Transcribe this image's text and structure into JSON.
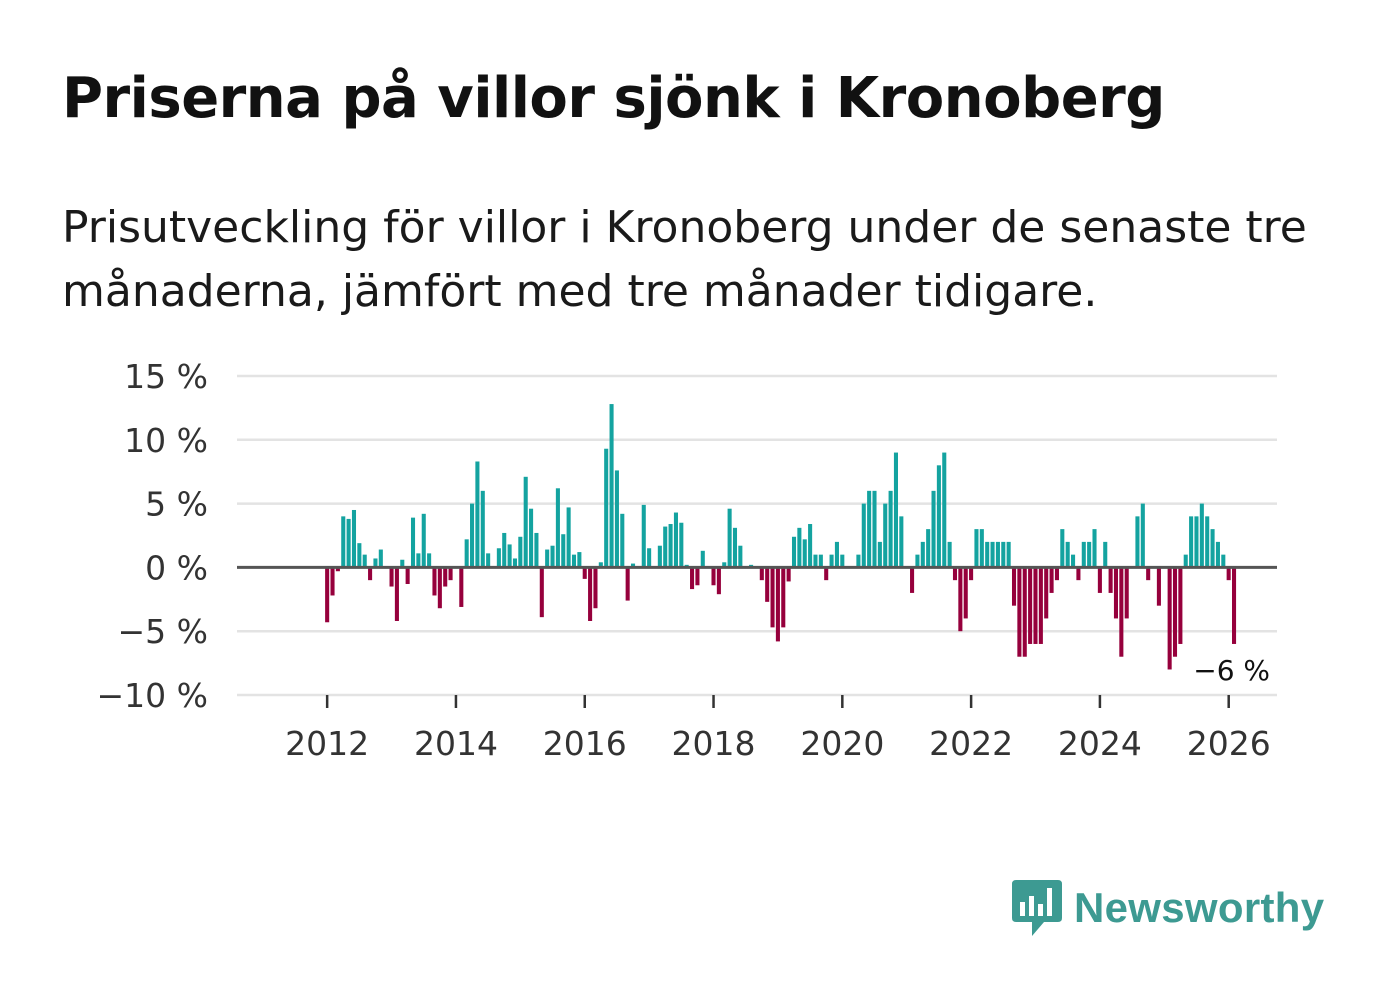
{
  "title": "Priserna på villor sjönk i Kronoberg",
  "subtitle": "Prisutveckling för villor i Kronoberg under de senaste tre månaderna, jämfört med tre månader tidigare.",
  "brand": "Newsworthy",
  "colors": {
    "positive": "#14a3a0",
    "negative": "#96003c",
    "grid": "#e3e3e3",
    "zero": "#555555",
    "brand": "#3d9a92"
  },
  "chart_data": {
    "type": "bar",
    "title": "Priserna på villor sjönk i Kronoberg",
    "xlabel": "",
    "ylabel": "",
    "ylim": [
      -10,
      15
    ],
    "xlim": [
      2010.6,
      2026.75
    ],
    "y_ticks": [
      {
        "value": 15,
        "label": "15 %"
      },
      {
        "value": 10,
        "label": "10 %"
      },
      {
        "value": 5,
        "label": "5 %"
      },
      {
        "value": 0,
        "label": "0 %"
      },
      {
        "value": -5,
        "label": "−5 %"
      },
      {
        "value": -10,
        "label": "−10 %"
      }
    ],
    "x_ticks": [
      {
        "value": 2012,
        "label": "2012"
      },
      {
        "value": 2014,
        "label": "2014"
      },
      {
        "value": 2016,
        "label": "2016"
      },
      {
        "value": 2018,
        "label": "2018"
      },
      {
        "value": 2020,
        "label": "2020"
      },
      {
        "value": 2022,
        "label": "2022"
      },
      {
        "value": 2024,
        "label": "2024"
      },
      {
        "value": 2026,
        "label": "2026"
      }
    ],
    "start": 2012.0,
    "step": 0.08333,
    "values": [
      -4.3,
      -2.2,
      -0.3,
      4.0,
      3.8,
      4.5,
      1.9,
      1.0,
      -1.0,
      0.7,
      1.4,
      0,
      -1.5,
      -4.2,
      0.6,
      -1.3,
      3.9,
      1.1,
      4.2,
      1.1,
      -2.2,
      -3.2,
      -1.5,
      -1.0,
      0,
      -3.1,
      2.2,
      5.0,
      8.3,
      6.0,
      1.1,
      0,
      1.5,
      2.7,
      1.8,
      0.7,
      2.4,
      7.1,
      4.6,
      2.7,
      -3.9,
      1.4,
      1.7,
      6.2,
      2.6,
      4.7,
      1.0,
      1.2,
      -0.9,
      -4.2,
      -3.2,
      0.4,
      9.3,
      12.8,
      7.6,
      4.2,
      -2.6,
      0.3,
      0,
      4.9,
      1.5,
      0,
      1.7,
      3.2,
      3.4,
      4.3,
      3.5,
      0.2,
      -1.7,
      -1.4,
      1.3,
      0,
      -1.4,
      -2.1,
      0.4,
      4.6,
      3.1,
      1.7,
      0,
      0.2,
      0,
      -1.0,
      -2.7,
      -4.7,
      -5.8,
      -4.7,
      -1.1,
      2.4,
      3.1,
      2.2,
      3.4,
      1.0,
      1.0,
      -1.0,
      1.0,
      2.0,
      1.0,
      0,
      0,
      1.0,
      5.0,
      6.0,
      6.0,
      2.0,
      5.0,
      6.0,
      9.0,
      4.0,
      0,
      -2.0,
      1.0,
      2.0,
      3.0,
      6.0,
      8.0,
      9.0,
      2.0,
      -1.0,
      -5.0,
      -4.0,
      -1.0,
      3.0,
      3.0,
      2.0,
      2.0,
      2.0,
      2.0,
      2.0,
      -3.0,
      -7.0,
      -7.0,
      -6.0,
      -6.0,
      -6.0,
      -4.0,
      -2.0,
      -1.0,
      3.0,
      2.0,
      1.0,
      -1.0,
      2.0,
      2.0,
      3.0,
      -2.0,
      2.0,
      -2.0,
      -4.0,
      -7.0,
      -4.0,
      0,
      4.0,
      5.0,
      -1.0,
      0,
      -3.0,
      0,
      -8.0,
      -7.0,
      -6.0,
      1.0,
      4.0,
      4.0,
      5.0,
      4.0,
      3.0,
      2.0,
      1.0,
      -1.0,
      -6.0
    ],
    "annotation": {
      "label": "−6 %"
    }
  }
}
